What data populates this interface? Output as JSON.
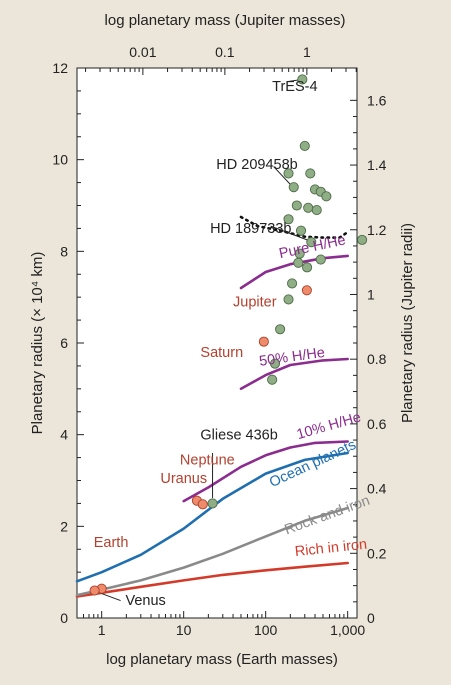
{
  "chart_data": {
    "type": "scatter",
    "title": "",
    "xlabel": "log planetary mass (Earth masses)",
    "xlabel_top": "log planetary mass (Jupiter masses)",
    "ylabel": "Planetary radius (× 10⁴ km)",
    "ylabel_right": "Planetary radius (Jupiter radii)",
    "x_scale": "log",
    "xlim": [
      0.5,
      1300
    ],
    "ylim": [
      0,
      12
    ],
    "right_ylim": [
      0,
      1.7
    ],
    "x_ticks": [
      1,
      10,
      100,
      1000
    ],
    "x_tick_labels": [
      "1",
      "10",
      "100",
      "1,000"
    ],
    "top_ticks": [
      0.01,
      0.1,
      1
    ],
    "top_tick_labels": [
      "0.01",
      "0.1",
      "1"
    ],
    "earth_masses_per_jupiter_mass": 318,
    "y_ticks": [
      0,
      2,
      4,
      6,
      8,
      10,
      12
    ],
    "y_tick_labels": [
      "0",
      "2",
      "4",
      "6",
      "8",
      "10",
      "12"
    ],
    "right_ticks": [
      0,
      0.2,
      0.4,
      0.6,
      0.8,
      1,
      1.2,
      1.4,
      1.6
    ],
    "right_tick_labels": [
      "0",
      "0.2",
      "0.4",
      "0.6",
      "0.8",
      "1",
      "1.2",
      "1.4",
      "1.6"
    ],
    "km_per_jupiter_radius_1e4": 7.15,
    "series": [
      {
        "type": "line",
        "color": "#d43a2a",
        "label": "Rich in iron",
        "points": [
          [
            0.5,
            0.47
          ],
          [
            1,
            0.55
          ],
          [
            3,
            0.68
          ],
          [
            10,
            0.82
          ],
          [
            30,
            0.94
          ],
          [
            100,
            1.04
          ],
          [
            300,
            1.12
          ],
          [
            1000,
            1.2
          ]
        ]
      },
      {
        "type": "line",
        "color": "#8a8a8a",
        "label": "Rock and iron",
        "points": [
          [
            0.5,
            0.5
          ],
          [
            1,
            0.62
          ],
          [
            3,
            0.82
          ],
          [
            10,
            1.1
          ],
          [
            30,
            1.4
          ],
          [
            100,
            1.78
          ],
          [
            300,
            2.12
          ],
          [
            1000,
            2.4
          ]
        ]
      },
      {
        "type": "line",
        "color": "#1f6fb0",
        "label": "Ocean planets",
        "points": [
          [
            0.5,
            0.8
          ],
          [
            1,
            1.0
          ],
          [
            3,
            1.38
          ],
          [
            10,
            1.95
          ],
          [
            30,
            2.6
          ],
          [
            100,
            3.15
          ],
          [
            300,
            3.45
          ],
          [
            1000,
            3.6
          ]
        ]
      },
      {
        "type": "line",
        "color": "#8b2c8f",
        "label": "10% H/He",
        "points": [
          [
            10,
            2.55
          ],
          [
            20,
            2.85
          ],
          [
            50,
            3.3
          ],
          [
            100,
            3.55
          ],
          [
            200,
            3.72
          ],
          [
            400,
            3.82
          ],
          [
            1000,
            3.85
          ]
        ]
      },
      {
        "type": "line",
        "color": "#8b2c8f",
        "label": "50% H/He",
        "points": [
          [
            50,
            5.0
          ],
          [
            100,
            5.3
          ],
          [
            200,
            5.52
          ],
          [
            500,
            5.62
          ],
          [
            1000,
            5.65
          ]
        ]
      },
      {
        "type": "line",
        "color": "#8b2c8f",
        "label": "Pure H/He",
        "points": [
          [
            50,
            7.2
          ],
          [
            100,
            7.55
          ],
          [
            200,
            7.72
          ],
          [
            500,
            7.85
          ],
          [
            1000,
            7.9
          ]
        ]
      },
      {
        "type": "line",
        "style": "dotted",
        "color": "#111111",
        "label": "",
        "points": [
          [
            50,
            8.75
          ],
          [
            80,
            8.55
          ],
          [
            150,
            8.45
          ],
          [
            300,
            8.32
          ],
          [
            500,
            8.3
          ],
          [
            800,
            8.3
          ],
          [
            1000,
            8.42
          ]
        ]
      }
    ],
    "solar_system": [
      {
        "name": "Earth",
        "mass": 1,
        "radius": 0.64
      },
      {
        "name": "Venus",
        "mass": 0.82,
        "radius": 0.6
      },
      {
        "name": "Uranus",
        "mass": 14.5,
        "radius": 2.56
      },
      {
        "name": "Neptune",
        "mass": 17.1,
        "radius": 2.48
      },
      {
        "name": "Saturn",
        "mass": 95,
        "radius": 6.03
      },
      {
        "name": "Jupiter",
        "mass": 318,
        "radius": 7.15
      }
    ],
    "exoplanets": [
      {
        "name": "TrES-4",
        "mass": 280,
        "radius": 11.75
      },
      {
        "name": "HD 209458b",
        "mass": 220,
        "radius": 9.4
      },
      {
        "name": "HD 189733b",
        "mass": 360,
        "radius": 8.2
      },
      {
        "name": "Gliese 436b",
        "mass": 22.5,
        "radius": 2.5
      },
      {
        "mass": 300,
        "radius": 10.3
      },
      {
        "mass": 190,
        "radius": 9.7
      },
      {
        "mass": 350,
        "radius": 9.7
      },
      {
        "mass": 400,
        "radius": 9.35
      },
      {
        "mass": 470,
        "radius": 9.3
      },
      {
        "mass": 550,
        "radius": 9.2
      },
      {
        "mass": 240,
        "radius": 9.0
      },
      {
        "mass": 330,
        "radius": 8.95
      },
      {
        "mass": 420,
        "radius": 8.9
      },
      {
        "mass": 190,
        "radius": 8.7
      },
      {
        "mass": 270,
        "radius": 8.45
      },
      {
        "mass": 1500,
        "radius": 8.25
      },
      {
        "mass": 260,
        "radius": 7.95
      },
      {
        "mass": 470,
        "radius": 7.82
      },
      {
        "mass": 250,
        "radius": 7.75
      },
      {
        "mass": 320,
        "radius": 7.65
      },
      {
        "mass": 210,
        "radius": 7.3
      },
      {
        "mass": 190,
        "radius": 6.95
      },
      {
        "mass": 150,
        "radius": 6.3
      },
      {
        "mass": 130,
        "radius": 5.55
      },
      {
        "mass": 120,
        "radius": 5.2
      }
    ],
    "labels": [
      {
        "text": "TrES-4",
        "mass": 120,
        "radius": 11.5,
        "color": "#222222"
      },
      {
        "text": "HD 209458b",
        "mass": 25,
        "radius": 9.8,
        "color": "#222222"
      },
      {
        "text": "HD 189733b",
        "mass": 21,
        "radius": 8.4,
        "color": "#222222"
      },
      {
        "text": "Gliese 436b",
        "mass": 16,
        "radius": 3.9,
        "color": "#222222"
      },
      {
        "text": "Pure H/He",
        "mass": 150,
        "radius": 7.85,
        "color": "#8b2c8f",
        "rotate": -12
      },
      {
        "text": "50% H/He",
        "mass": 85,
        "radius": 5.5,
        "color": "#8b2c8f",
        "rotate": -8
      },
      {
        "text": "10% H/He",
        "mass": 250,
        "radius": 3.9,
        "color": "#8b2c8f",
        "rotate": -16
      },
      {
        "text": "Ocean planets",
        "mass": 120,
        "radius": 2.85,
        "color": "#1f6fb0",
        "rotate": -25
      },
      {
        "text": "Rock and iron",
        "mass": 180,
        "radius": 1.82,
        "color": "#8a8a8a",
        "rotate": -20
      },
      {
        "text": "Rich in iron",
        "mass": 230,
        "radius": 1.35,
        "color": "#d43a2a",
        "rotate": -6
      },
      {
        "text": "Jupiter",
        "mass": 40,
        "radius": 6.8,
        "color": "#b3412f"
      },
      {
        "text": "Saturn",
        "mass": 16,
        "radius": 5.7,
        "color": "#b3412f"
      },
      {
        "text": "Neptune",
        "mass": 9,
        "radius": 3.35,
        "color": "#b3412f"
      },
      {
        "text": "Uranus",
        "mass": 5.2,
        "radius": 2.95,
        "color": "#b3412f"
      },
      {
        "text": "Earth",
        "mass": 0.8,
        "radius": 1.55,
        "color": "#b3412f"
      },
      {
        "text": "Venus",
        "mass": 1.95,
        "radius": 0.28,
        "color": "#222222"
      }
    ],
    "leaders": [
      {
        "from": [
          180,
          11.7
        ],
        "to": [
          275,
          11.75
        ]
      },
      {
        "from": [
          125,
          9.85
        ],
        "to": [
          210,
          9.42
        ]
      },
      {
        "from": [
          115,
          8.55
        ],
        "to": [
          355,
          8.22
        ]
      },
      {
        "from": [
          22.5,
          3.6
        ],
        "to": [
          22.5,
          2.62
        ]
      },
      {
        "from": [
          1.7,
          0.38
        ],
        "to": [
          0.85,
          0.58
        ]
      }
    ]
  }
}
